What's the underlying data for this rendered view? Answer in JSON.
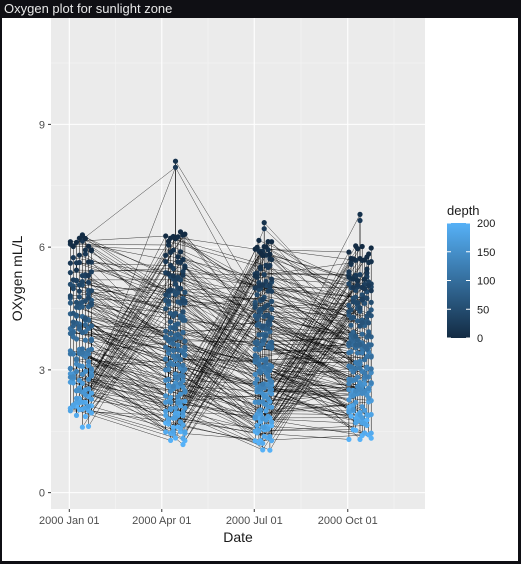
{
  "window": {
    "title": "Oxygen plot for sunlight zone"
  },
  "chart_data": {
    "type": "scatter",
    "title": "",
    "xlabel": "Date",
    "ylabel": "OXygen mL/L",
    "x_ticks": [
      "2000 Jan 01",
      "2000 Apr 01",
      "2000 Jul 01",
      "2000 Oct 01"
    ],
    "x_tick_dates": [
      "2000-01-01",
      "2000-04-01",
      "2000-07-01",
      "2000-10-01"
    ],
    "xlim": [
      "1999-12-14",
      "2000-12-16"
    ],
    "y_ticks": [
      0,
      3,
      6,
      9
    ],
    "ylim": [
      -0.4,
      11.6
    ],
    "grid": true,
    "connected_by_lines": true,
    "legend": {
      "title": "depth",
      "type": "colorbar",
      "position": "right",
      "ticks": [
        0,
        50,
        100,
        150,
        200
      ],
      "range": [
        0,
        200
      ],
      "color_low": "#132b43",
      "color_high": "#56b1f7"
    },
    "clusters": [
      {
        "date_start": "2000-01-02",
        "date_end": "2000-01-23",
        "o2_min": 1.6,
        "o2_max": 6.3,
        "o2_surface": 6.0
      },
      {
        "date_start": "2000-04-05",
        "date_end": "2000-04-24",
        "o2_min": 1.1,
        "o2_max": 8.1,
        "o2_surface": 6.1
      },
      {
        "date_start": "2000-07-02",
        "date_end": "2000-07-18",
        "o2_min": 1.0,
        "o2_max": 6.6,
        "o2_surface": 5.9
      },
      {
        "date_start": "2000-10-02",
        "date_end": "2000-10-24",
        "o2_min": 1.3,
        "o2_max": 6.8,
        "o2_surface": 5.8
      }
    ]
  }
}
